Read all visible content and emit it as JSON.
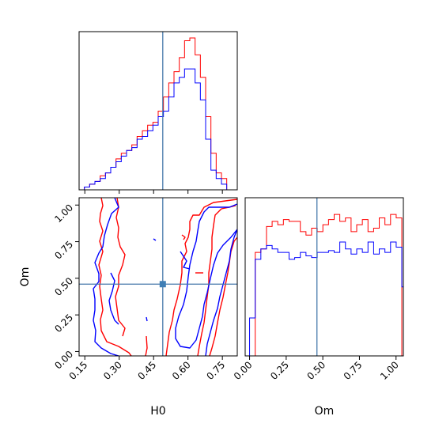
{
  "colors": {
    "red": "#ff0000",
    "blue": "#0000ff",
    "truth": "#3f7fb6"
  },
  "chart_data": {
    "type": "corner",
    "parameters": [
      "H0",
      "Om"
    ],
    "xlabels": {
      "H0": "H0",
      "Om": "Om"
    },
    "ylabels": {
      "Om": "Om"
    },
    "truths": {
      "H0": 0.49,
      "Om": 0.46
    },
    "ranges": {
      "H0": [
        0.125,
        0.815
      ],
      "Om": [
        -0.03,
        1.05
      ]
    },
    "ticks": {
      "H0": [
        "0.15",
        "0.30",
        "0.45",
        "0.60",
        "0.75"
      ],
      "Om": [
        "0.00",
        "0.25",
        "0.50",
        "0.75",
        "1.00"
      ]
    },
    "hist_H0": {
      "bin_start": 0.125,
      "bin_width": 0.023,
      "series": [
        {
          "color": "red",
          "values": [
            0,
            1,
            2,
            3,
            5,
            6,
            8,
            11,
            13,
            14,
            16,
            19,
            21,
            23,
            24,
            28,
            33,
            38,
            42,
            47,
            53,
            54,
            48,
            40,
            26,
            13,
            6,
            4,
            0,
            0
          ]
        },
        {
          "color": "blue",
          "values": [
            0,
            1,
            2,
            3,
            4,
            6,
            8,
            10,
            12,
            14,
            15,
            18,
            19,
            21,
            23,
            26,
            28,
            33,
            38,
            40,
            43,
            43,
            38,
            32,
            18,
            7,
            4,
            2,
            0,
            0
          ]
        }
      ]
    },
    "hist_Om": {
      "bin_start": 0.0,
      "bin_width": 0.0385,
      "series": [
        {
          "color": "red",
          "values": [
            0,
            60,
            62,
            75,
            78,
            76,
            79,
            78,
            78,
            72,
            70,
            74,
            72,
            76,
            79,
            82,
            78,
            80,
            72,
            76,
            79,
            72,
            74,
            80,
            76,
            82,
            80,
            0
          ]
        },
        {
          "color": "blue",
          "values": [
            22,
            56,
            62,
            64,
            62,
            60,
            60,
            56,
            57,
            60,
            58,
            57,
            60,
            60,
            61,
            60,
            66,
            62,
            59,
            62,
            60,
            66,
            59,
            62,
            60,
            66,
            63,
            40
          ]
        }
      ]
    },
    "contour_description": "2D credible-region contours of H0 vs Om for the red and blue chains"
  }
}
